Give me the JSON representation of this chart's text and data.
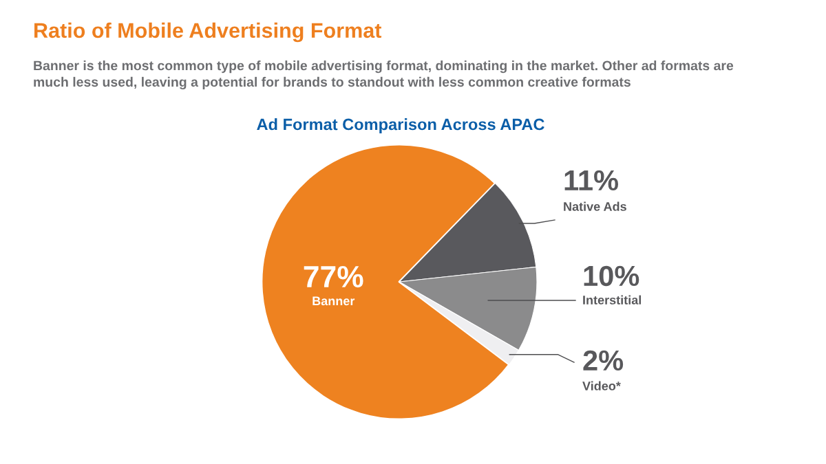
{
  "chart_data": {
    "type": "pie",
    "title": "Ratio of Mobile Advertising Format",
    "subtitle": "Banner is the most common type of mobile advertising format, dominating in the market. Other ad formats are\nmuch less used, leaving a potential for brands to standout with less common creative formats",
    "annotations": [
      "Ad Format Comparison Across APAC"
    ],
    "categories": [
      "Banner",
      "Native Ads",
      "Interstitial",
      "Video*"
    ],
    "values": [
      77,
      11,
      10,
      2
    ],
    "colors": [
      "#ee8220",
      "#59595d",
      "#8b8b8c",
      "#efeff1"
    ],
    "value_labels": [
      "77%",
      "11%",
      "10%",
      "2%"
    ]
  }
}
